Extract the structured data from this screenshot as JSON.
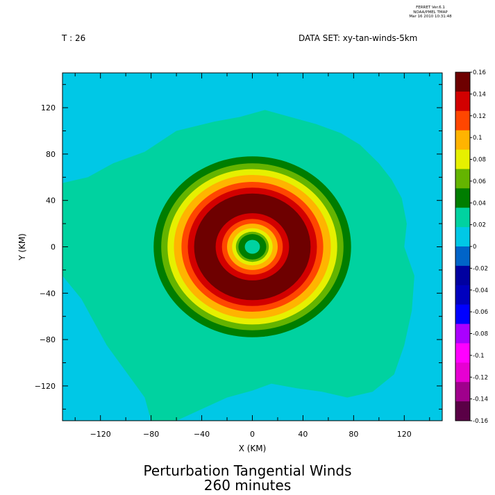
{
  "header": {
    "stamp_line1": "FERRET  Ver.6.1",
    "stamp_line2": "NOAA/PMEL TMAP",
    "stamp_line3": "Mar 16 2010 10:31:48",
    "time_label": "T : 26",
    "dataset_label": "DATA SET: xy-tan-winds-5km"
  },
  "chart_data": {
    "type": "heatmap",
    "title": "Perturbation Tangential Winds",
    "subtitle": "260 minutes",
    "xlabel": "X (KM)",
    "ylabel": "Y (KM)",
    "xlim": [
      -150,
      150
    ],
    "ylim": [
      -150,
      150
    ],
    "x_ticks": [
      -120,
      -80,
      -40,
      0,
      40,
      80,
      120
    ],
    "y_ticks": [
      120,
      80,
      40,
      0,
      -40,
      -80,
      -120
    ],
    "x_tick_labels": [
      "−120",
      "−80",
      "−40",
      "0",
      "40",
      "80",
      "120"
    ],
    "y_tick_labels": [
      "120",
      "80",
      "40",
      "0",
      "−40",
      "−80",
      "−120"
    ],
    "colorbar": {
      "levels": [
        -0.16,
        -0.14,
        -0.12,
        -0.1,
        -0.08,
        -0.06,
        -0.04,
        -0.02,
        0,
        0.02,
        0.04,
        0.06,
        0.08,
        0.1,
        0.12,
        0.14,
        0.16
      ],
      "level_labels": [
        "-0.16",
        "-0.14",
        "-0.12",
        "-0.1",
        "-0.08",
        "-0.06",
        "-0.04",
        "-0.02",
        "0",
        "0.02",
        "0.04",
        "0.06",
        "0.08",
        "0.1",
        "0.12",
        "0.14",
        "0.16"
      ],
      "colors": [
        "#5a0046",
        "#a0008c",
        "#e600d2",
        "#ff00ff",
        "#aa00ff",
        "#0000ff",
        "#0000be",
        "#0000a0",
        "#0064c8",
        "#00c8e6",
        "#00d2a0",
        "#007d00",
        "#64b400",
        "#e6f000",
        "#ffb400",
        "#ff4600",
        "#d20000",
        "#6e0000"
      ]
    },
    "field": {
      "description_of_rings": "concentric ring structure of tangential wind perturbation",
      "center": [
        0,
        0
      ],
      "rings": [
        {
          "r_outer": 78,
          "value_band": [
            0.02,
            0.04
          ],
          "color": "#007d00"
        },
        {
          "r_outer": 72,
          "value_band": [
            0.04,
            0.06
          ],
          "color": "#64b400"
        },
        {
          "r_outer": 67,
          "value_band": [
            0.06,
            0.08
          ],
          "color": "#e6f000"
        },
        {
          "r_outer": 62,
          "value_band": [
            0.08,
            0.1
          ],
          "color": "#ffb400"
        },
        {
          "r_outer": 56,
          "value_band": [
            0.1,
            0.12
          ],
          "color": "#ff4600"
        },
        {
          "r_outer": 51,
          "value_band": [
            0.12,
            0.14
          ],
          "color": "#d20000"
        },
        {
          "r_outer": 46,
          "value_band": [
            0.14,
            0.16
          ],
          "color": "#6e0000"
        },
        {
          "r_outer": 29,
          "value_band": [
            0.12,
            0.14
          ],
          "color": "#d20000"
        },
        {
          "r_outer": 24,
          "value_band": [
            0.1,
            0.12
          ],
          "color": "#ff4600"
        },
        {
          "r_outer": 20,
          "value_band": [
            0.08,
            0.1
          ],
          "color": "#ffb400"
        },
        {
          "r_outer": 16,
          "value_band": [
            0.06,
            0.08
          ],
          "color": "#e6f000"
        },
        {
          "r_outer": 13,
          "value_band": [
            0.04,
            0.06
          ],
          "color": "#64b400"
        },
        {
          "r_outer": 11,
          "value_band": [
            0.02,
            0.04
          ],
          "color": "#007d00"
        },
        {
          "r_outer": 6,
          "value_band": [
            0,
            0.02
          ],
          "color": "#00d2a0"
        }
      ]
    },
    "grid": false,
    "legend_placement": "right colorbar"
  }
}
